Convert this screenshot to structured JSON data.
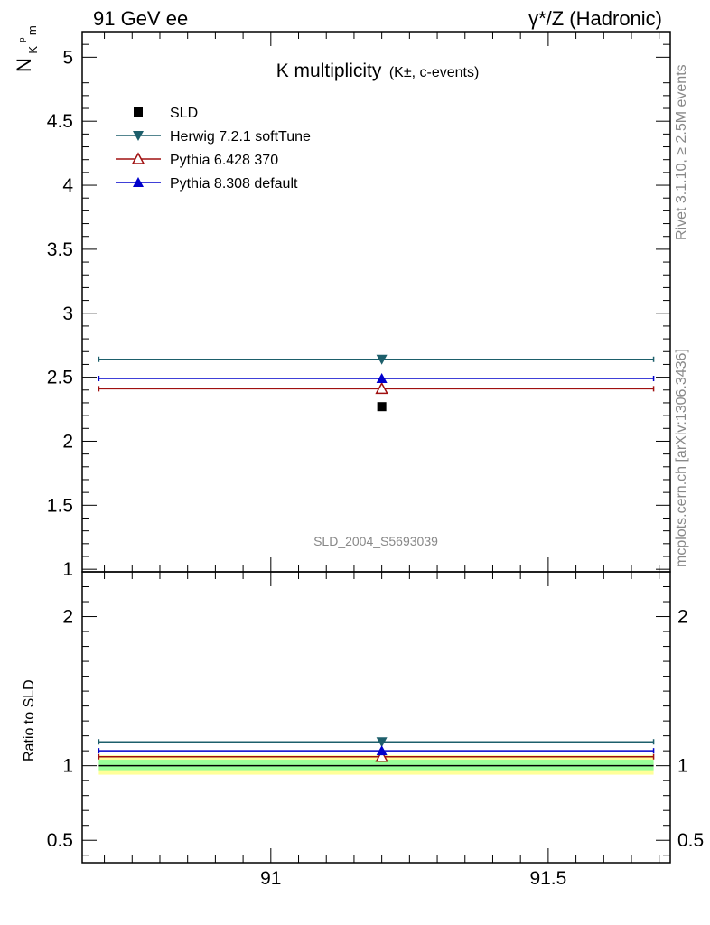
{
  "header": {
    "left": "91 GeV ee",
    "right": "γ*/Z (Hadronic)"
  },
  "side_labels": {
    "rivet": "Rivet 3.1.10, ≥ 2.5M events",
    "mcplots": "mcplots.cern.ch [arXiv:1306.3436]"
  },
  "chart_data": [
    {
      "type": "scatter",
      "title_main": "K multiplicity",
      "title_sub": "(K±, c-events)",
      "ylabel": {
        "base": "N",
        "sub": "K",
        "sup": "p",
        "tail": "m"
      },
      "watermark": "SLD_2004_S5693039",
      "xlim": [
        90.66,
        91.72
      ],
      "ylim": [
        0.98,
        5.2
      ],
      "x_ticks": [
        91,
        91.5
      ],
      "y_ticks": [
        1,
        1.5,
        2,
        2.5,
        3,
        3.5,
        4,
        4.5,
        5
      ],
      "y_tick_labels": [
        "1",
        "1.5",
        "2",
        "2.5",
        "3",
        "3.5",
        "4",
        "4.5",
        "5"
      ],
      "legend_position": "top-left",
      "series": [
        {
          "name": "SLD",
          "marker": "square",
          "color": "#000000",
          "x": 91.2,
          "y": 2.27,
          "xerr": [
            91.2,
            91.2
          ]
        },
        {
          "name": "Herwig 7.2.1 softTune",
          "marker": "triangle-down",
          "color": "#1d5f6b",
          "x": 91.2,
          "y": 2.64,
          "xerr": [
            90.69,
            91.69
          ]
        },
        {
          "name": "Pythia 6.428 370",
          "marker": "triangle-up-open",
          "color": "#a01010",
          "x": 91.2,
          "y": 2.41,
          "xerr": [
            90.69,
            91.69
          ]
        },
        {
          "name": "Pythia 8.308 default",
          "marker": "triangle-up",
          "color": "#0000cc",
          "x": 91.2,
          "y": 2.49,
          "xerr": [
            90.69,
            91.69
          ]
        }
      ]
    },
    {
      "type": "scatter",
      "ylabel": "Ratio to SLD",
      "xlim": [
        90.66,
        91.72
      ],
      "ylim": [
        0.35,
        2.3
      ],
      "x_ticks": [
        91,
        91.5
      ],
      "x_tick_labels": [
        "91",
        "91.5"
      ],
      "y_ticks": [
        0.5,
        1,
        2
      ],
      "y_tick_labels": [
        "0.5",
        "1",
        "2"
      ],
      "bands": [
        {
          "kind": "total-uncertainty",
          "ylow": 0.94,
          "yhigh": 1.07,
          "color": "#ffff99"
        },
        {
          "kind": "statistical-uncertainty",
          "ylow": 0.97,
          "yhigh": 1.04,
          "color": "#99ff99"
        }
      ],
      "reference_line": 1.0,
      "series": [
        {
          "name": "Herwig 7.2.1 softTune",
          "marker": "triangle-down",
          "color": "#1d5f6b",
          "x": 91.2,
          "y": 1.16,
          "xerr": [
            90.69,
            91.69
          ]
        },
        {
          "name": "Pythia 6.428 370",
          "marker": "triangle-up-open",
          "color": "#a01010",
          "x": 91.2,
          "y": 1.06,
          "xerr": [
            90.69,
            91.69
          ]
        },
        {
          "name": "Pythia 8.308 default",
          "marker": "triangle-up",
          "color": "#0000cc",
          "x": 91.2,
          "y": 1.1,
          "xerr": [
            90.69,
            91.69
          ]
        }
      ]
    }
  ]
}
